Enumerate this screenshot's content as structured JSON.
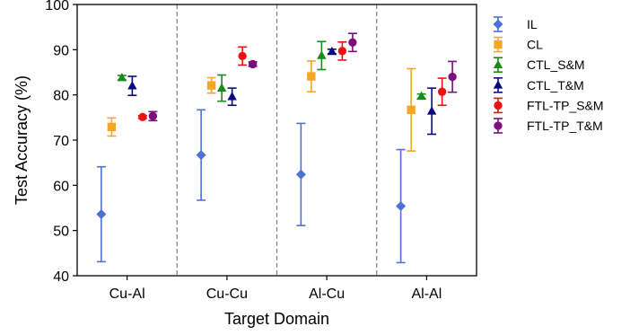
{
  "chart_data": {
    "type": "scatter",
    "variant": "errorbar",
    "xlabel": "Target Domain",
    "ylabel": "Test Accuracy (%)",
    "ylim": [
      40,
      100
    ],
    "yticks": [
      40,
      50,
      60,
      70,
      80,
      90,
      100
    ],
    "categories": [
      "Cu-Al",
      "Cu-Cu",
      "Al-Cu",
      "Al-Al"
    ],
    "grid": false,
    "category_separators": "dashed",
    "legend_position": "outside-right",
    "series": [
      {
        "name": "IL",
        "color": "#4c72d6",
        "marker": "diamond",
        "values": [
          53.6,
          66.7,
          62.4,
          55.4
        ],
        "errors": [
          10.5,
          10.0,
          11.3,
          12.5
        ]
      },
      {
        "name": "CL",
        "color": "#f5a623",
        "marker": "square",
        "values": [
          72.9,
          82.1,
          84.1,
          76.7
        ],
        "errors": [
          2.0,
          1.7,
          3.4,
          9.1
        ]
      },
      {
        "name": "CTL_S&M",
        "color": "#1a8a1a",
        "marker": "triangle-up",
        "values": [
          83.8,
          81.5,
          88.7,
          79.7
        ],
        "errors": [
          0.5,
          2.9,
          3.1,
          0.5
        ]
      },
      {
        "name": "CTL_T&M",
        "color": "#0a0a80",
        "marker": "triangle-up",
        "values": [
          82.0,
          79.6,
          89.6,
          76.4
        ],
        "errors": [
          2.1,
          1.9,
          0.5,
          5.1
        ]
      },
      {
        "name": "FTL-TP_S&M",
        "color": "#ee1111",
        "marker": "circle",
        "values": [
          75.1,
          88.6,
          89.7,
          80.7
        ],
        "errors": [
          0.3,
          2.0,
          2.0,
          3.0
        ]
      },
      {
        "name": "FTL-TP_T&M",
        "color": "#7b0f7b",
        "marker": "circle",
        "values": [
          75.3,
          86.8,
          91.6,
          84.0
        ],
        "errors": [
          1.0,
          0.5,
          2.0,
          3.4
        ]
      }
    ]
  }
}
